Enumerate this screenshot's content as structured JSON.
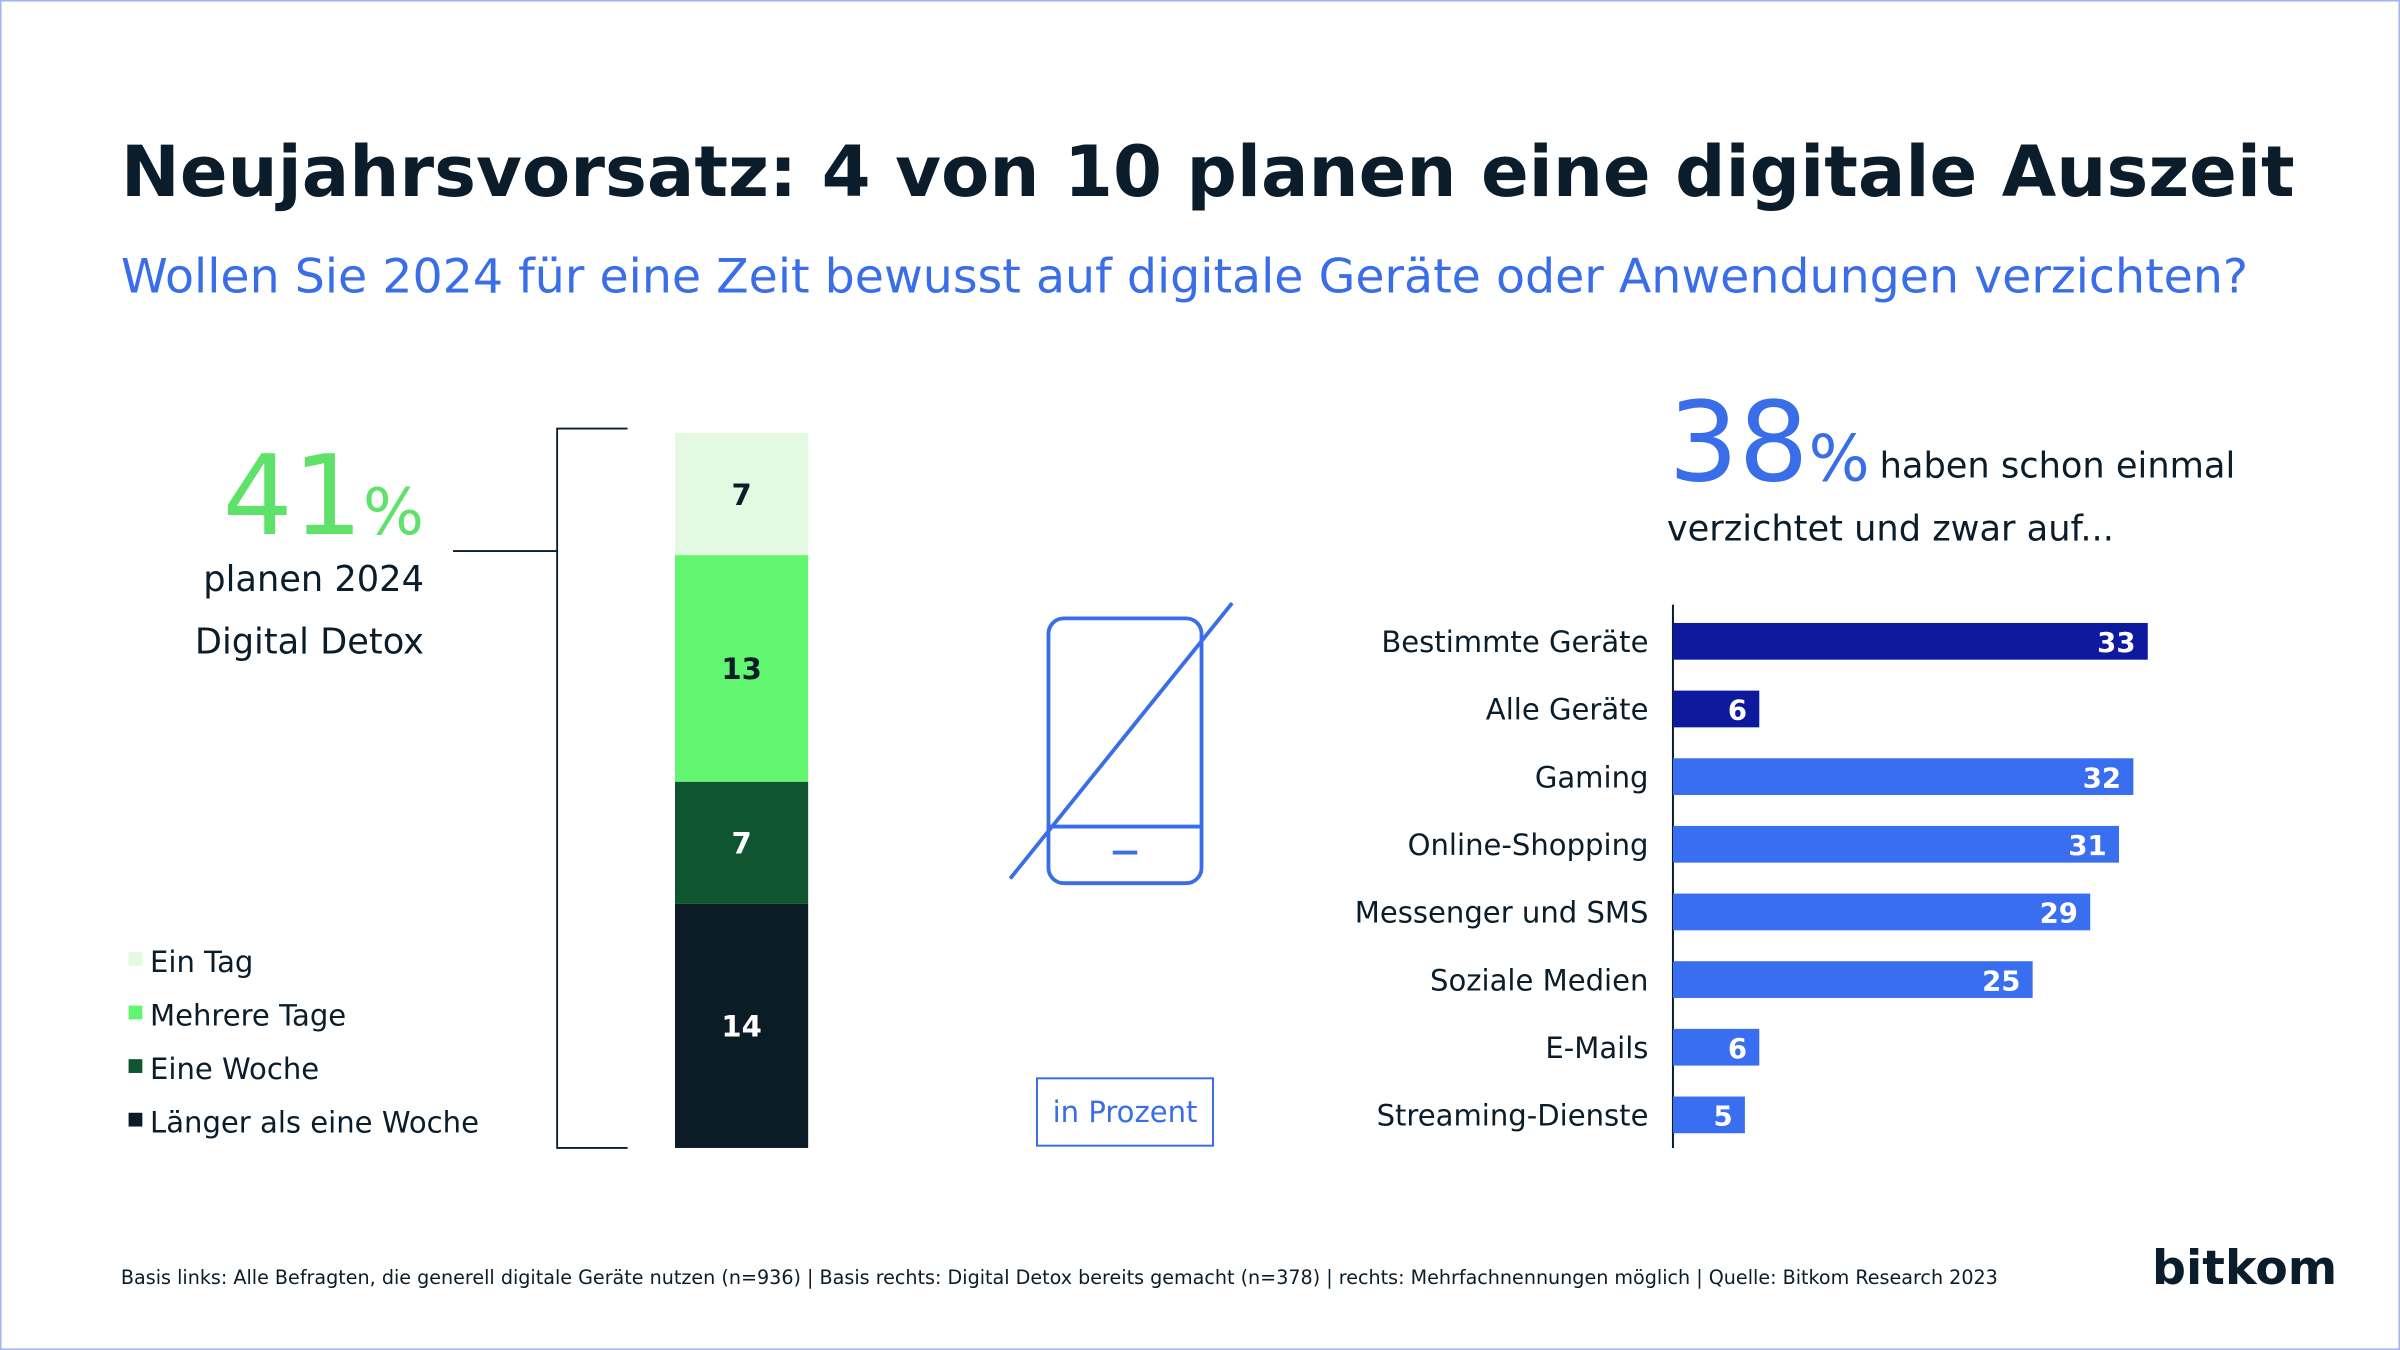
{
  "title": "Neujahrsvorsatz: 4 von 10 planen eine digitale Auszeit",
  "subtitle": "Wollen Sie 2024 für eine Zeit bewusst auf digitale Geräte oder Anwendungen verzichten?",
  "chart_data": [
    {
      "type": "stacked_bar",
      "headline_value": 41,
      "headline_unit": "%",
      "headline_text": [
        "planen 2024",
        "Digital Detox"
      ],
      "series": [
        {
          "name": "Ein Tag",
          "color": "#e4f9e1",
          "values": [
            7
          ]
        },
        {
          "name": "Mehrere Tage",
          "color": "#62f56f",
          "values": [
            13
          ]
        },
        {
          "name": "Eine Woche",
          "color": "#0f5530",
          "values": [
            7
          ]
        },
        {
          "name": "Länger als eine Woche",
          "color": "#0b1c26",
          "values": [
            14
          ]
        }
      ]
    },
    {
      "type": "hbar",
      "headline_value": 38,
      "headline_unit": "%",
      "headline_text": [
        "haben schon einmal",
        "verzichtet und zwar auf..."
      ],
      "categories": [
        "Bestimmte Geräte",
        "Alle Geräte",
        "Gaming",
        "Online-Shopping",
        "Messenger und SMS",
        "Soziale Medien",
        "E-Mails",
        "Streaming-Dienste"
      ],
      "values": [
        33,
        6,
        32,
        31,
        29,
        25,
        6,
        5
      ],
      "colors": [
        "#0d1a9e",
        "#0d1a9e",
        "#3a6ef0",
        "#3a6ef0",
        "#3a6ef0",
        "#3a6ef0",
        "#3a6ef0",
        "#3a6ef0"
      ]
    }
  ],
  "note": "in Prozent",
  "footer": "Basis links: Alle Befragten, die generell digitale Geräte nutzen (n=936) | Basis rechts: Digital Detox bereits gemacht (n=378) | rechts: Mehrfachnennungen möglich | Quelle: Bitkom Research 2023",
  "logo": "bitkom"
}
